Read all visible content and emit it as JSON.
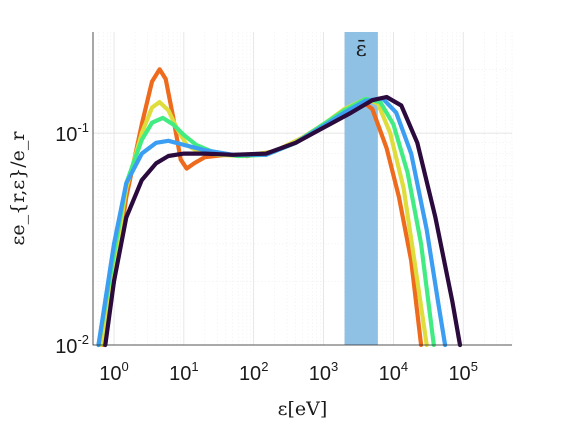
{
  "chart_data": {
    "type": "line",
    "title": "",
    "xlabel": "ε[eV]",
    "ylabel": "εe_{r,ε}/e_r",
    "xscale": "log",
    "yscale": "log",
    "xlim": [
      0.5,
      500000
    ],
    "ylim": [
      0.01,
      0.3
    ],
    "grid": true,
    "legend": "none",
    "x_ticks": [
      {
        "value": 1,
        "base": "10",
        "exp": "0"
      },
      {
        "value": 10,
        "base": "10",
        "exp": "1"
      },
      {
        "value": 100,
        "base": "10",
        "exp": "2"
      },
      {
        "value": 1000,
        "base": "10",
        "exp": "3"
      },
      {
        "value": 10000,
        "base": "10",
        "exp": "4"
      },
      {
        "value": 100000,
        "base": "10",
        "exp": "5"
      }
    ],
    "y_ticks": [
      {
        "value": 0.01,
        "base": "10",
        "exp": "-2"
      },
      {
        "value": 0.1,
        "base": "10",
        "exp": "-1"
      }
    ],
    "band": {
      "label": "ε̄",
      "x_range": [
        2000,
        6000
      ],
      "color": "#8fc1e5"
    },
    "series": [
      {
        "color": "#ee6a1c",
        "points": [
          [
            0.7,
            0.01
          ],
          [
            1,
            0.02
          ],
          [
            1.5,
            0.05
          ],
          [
            2.5,
            0.11
          ],
          [
            3.5,
            0.175
          ],
          [
            4.5,
            0.2
          ],
          [
            5.5,
            0.18
          ],
          [
            7,
            0.12
          ],
          [
            9,
            0.075
          ],
          [
            11,
            0.068
          ],
          [
            14,
            0.072
          ],
          [
            20,
            0.077
          ],
          [
            40,
            0.079
          ],
          [
            80,
            0.078
          ],
          [
            200,
            0.082
          ],
          [
            500,
            0.095
          ],
          [
            1000,
            0.11
          ],
          [
            2000,
            0.128
          ],
          [
            3500,
            0.142
          ],
          [
            5000,
            0.13
          ],
          [
            8000,
            0.085
          ],
          [
            12000,
            0.05
          ],
          [
            18000,
            0.025
          ],
          [
            25000,
            0.01
          ]
        ]
      },
      {
        "color": "#dedd3b",
        "points": [
          [
            0.65,
            0.01
          ],
          [
            1,
            0.024
          ],
          [
            1.5,
            0.055
          ],
          [
            2.5,
            0.1
          ],
          [
            3.5,
            0.132
          ],
          [
            4.5,
            0.14
          ],
          [
            6,
            0.128
          ],
          [
            8,
            0.105
          ],
          [
            11,
            0.088
          ],
          [
            16,
            0.082
          ],
          [
            30,
            0.079
          ],
          [
            70,
            0.078
          ],
          [
            200,
            0.082
          ],
          [
            500,
            0.095
          ],
          [
            1000,
            0.11
          ],
          [
            2000,
            0.13
          ],
          [
            4000,
            0.145
          ],
          [
            6000,
            0.138
          ],
          [
            9000,
            0.1
          ],
          [
            14000,
            0.055
          ],
          [
            20000,
            0.025
          ],
          [
            30000,
            0.01
          ]
        ]
      },
      {
        "color": "#43ec83",
        "points": [
          [
            0.6,
            0.01
          ],
          [
            1,
            0.027
          ],
          [
            1.5,
            0.058
          ],
          [
            2.5,
            0.093
          ],
          [
            3.5,
            0.112
          ],
          [
            5,
            0.118
          ],
          [
            7,
            0.11
          ],
          [
            10,
            0.098
          ],
          [
            15,
            0.088
          ],
          [
            25,
            0.082
          ],
          [
            60,
            0.078
          ],
          [
            150,
            0.079
          ],
          [
            400,
            0.09
          ],
          [
            1000,
            0.11
          ],
          [
            2000,
            0.128
          ],
          [
            4000,
            0.145
          ],
          [
            6500,
            0.14
          ],
          [
            10000,
            0.11
          ],
          [
            16000,
            0.065
          ],
          [
            25000,
            0.03
          ],
          [
            38000,
            0.01
          ]
        ]
      },
      {
        "color": "#3b9ef2",
        "points": [
          [
            0.6,
            0.01
          ],
          [
            1,
            0.03
          ],
          [
            1.5,
            0.058
          ],
          [
            2.5,
            0.08
          ],
          [
            4,
            0.09
          ],
          [
            6,
            0.092
          ],
          [
            10,
            0.088
          ],
          [
            20,
            0.083
          ],
          [
            50,
            0.079
          ],
          [
            150,
            0.079
          ],
          [
            400,
            0.09
          ],
          [
            1000,
            0.108
          ],
          [
            2000,
            0.125
          ],
          [
            4000,
            0.142
          ],
          [
            7000,
            0.146
          ],
          [
            11000,
            0.125
          ],
          [
            18000,
            0.08
          ],
          [
            30000,
            0.035
          ],
          [
            45000,
            0.015
          ],
          [
            55000,
            0.01
          ]
        ]
      },
      {
        "color": "#2b0a3d",
        "points": [
          [
            0.75,
            0.01
          ],
          [
            1,
            0.02
          ],
          [
            1.5,
            0.04
          ],
          [
            2.5,
            0.06
          ],
          [
            4,
            0.072
          ],
          [
            6,
            0.078
          ],
          [
            10,
            0.08
          ],
          [
            20,
            0.08
          ],
          [
            50,
            0.079
          ],
          [
            150,
            0.08
          ],
          [
            400,
            0.09
          ],
          [
            1000,
            0.106
          ],
          [
            2500,
            0.125
          ],
          [
            5000,
            0.143
          ],
          [
            8000,
            0.148
          ],
          [
            13000,
            0.135
          ],
          [
            22000,
            0.09
          ],
          [
            40000,
            0.04
          ],
          [
            70000,
            0.016
          ],
          [
            90000,
            0.01
          ]
        ]
      }
    ]
  }
}
